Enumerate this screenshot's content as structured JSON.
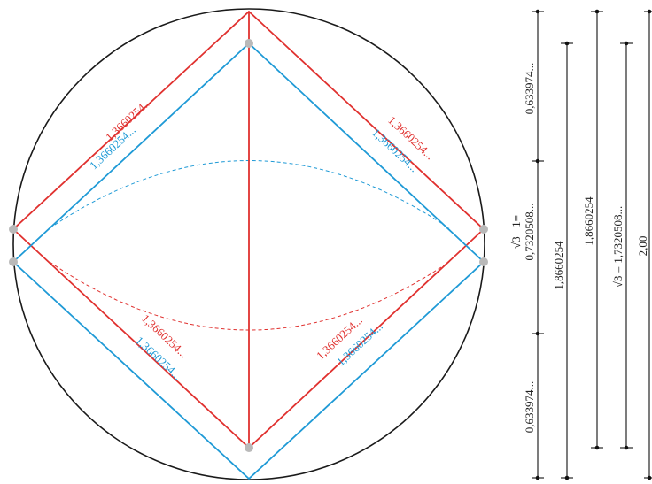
{
  "diagram": {
    "colors": {
      "red": "#e0312f",
      "blue": "#1f9ad6",
      "circle": "#1a1a1a",
      "vertex_dot": "#b9b9b9",
      "measure": "#111111"
    },
    "red_square_labels": [
      "1,3660254...",
      "1,3660254...",
      "1,3660254...",
      "1,3660254..."
    ],
    "blue_square_labels": [
      "1,3660254...",
      "1,3660254...",
      "1,3660254...",
      "1,3660254..."
    ],
    "measure_labels": {
      "top_segment": "0,633974...",
      "bottom_segment": "0,633974...",
      "middle_segment_line1": "√3 −1=",
      "middle_segment_line2": "0,7320508...",
      "red_height": "1,8660254",
      "blue_height": "1,8660254",
      "sqrt3": "√3 = 1,7320508...",
      "diameter": "2,00"
    }
  }
}
